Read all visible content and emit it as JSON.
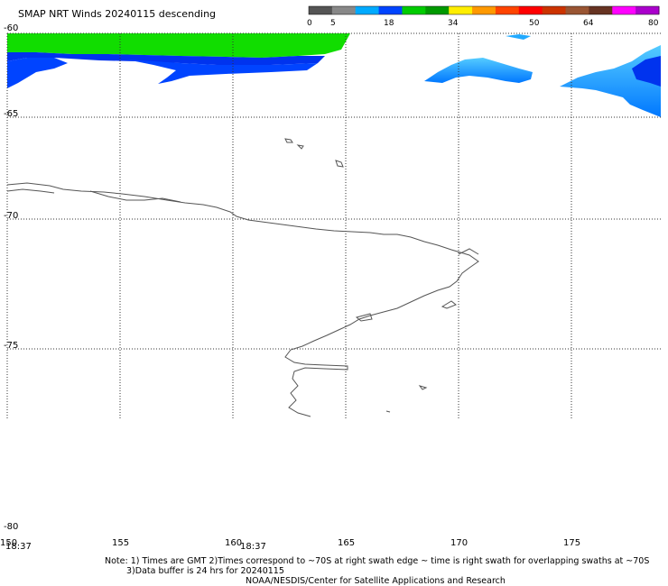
{
  "title": "SMAP NRT Winds  20240115 descending",
  "colorbar": {
    "labels": [
      "0",
      "5",
      "18",
      "34",
      "50",
      "64",
      "80"
    ],
    "segments": [
      {
        "color": "#555555"
      },
      {
        "color": "#888888"
      },
      {
        "color": "#00aaff"
      },
      {
        "color": "#0044ff"
      },
      {
        "color": "#00cc00"
      },
      {
        "color": "#009900"
      },
      {
        "color": "#ffee00"
      },
      {
        "color": "#ff9900"
      },
      {
        "color": "#ff4400"
      },
      {
        "color": "#ff0000"
      },
      {
        "color": "#cc3300"
      },
      {
        "color": "#995533"
      },
      {
        "color": "#663322"
      },
      {
        "color": "#ff00ff"
      },
      {
        "color": "#aa00cc"
      }
    ]
  },
  "map": {
    "lat_labels": [
      "-60",
      "-65",
      "-70",
      "-75",
      "-80"
    ],
    "lon_labels": [
      "150",
      "155",
      "160",
      "165",
      "170",
      "175"
    ],
    "swath_times": [
      "18:37",
      "18:37"
    ],
    "colors": {
      "wind_light_blue": "#22aaff",
      "wind_blue": "#0033ee",
      "wind_green": "#11dd00",
      "coastline": "#555555",
      "grid": "#333333"
    }
  },
  "notes": {
    "line1": "Note: 1) Times are GMT 2)Times correspond to ~70S at right swath edge ~ time is right swath for overlapping swaths at ~70S",
    "line2": "3)Data buffer is 24 hrs for 20240115",
    "line3": "NOAA/NESDIS/Center for Satellite Applications and Research"
  }
}
